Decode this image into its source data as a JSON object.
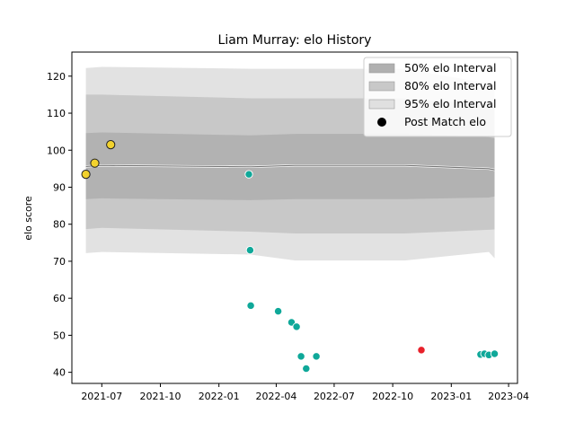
{
  "chart_data": {
    "type": "scatter",
    "title": "Liam Murray: elo History",
    "xlabel": "",
    "ylabel": "elo score",
    "xlim": [
      "2021-05-15",
      "2023-04-15"
    ],
    "ylim": [
      37,
      126.5
    ],
    "x_ticks": [
      "2021-07",
      "2021-10",
      "2022-01",
      "2022-04",
      "2022-07",
      "2022-10",
      "2023-01",
      "2023-04"
    ],
    "y_ticks": [
      40,
      50,
      60,
      70,
      80,
      90,
      100,
      110,
      120
    ],
    "grid": false,
    "legend_position": "top-right",
    "legend": [
      {
        "label": "50% elo Interval",
        "color": "#b0b0b0",
        "kind": "patch"
      },
      {
        "label": "80% elo Interval",
        "color": "#c8c8c8",
        "kind": "patch"
      },
      {
        "label": "95% elo Interval",
        "color": "#e0e0e0",
        "kind": "patch"
      },
      {
        "label": "Post Match elo",
        "color": "#000000",
        "kind": "marker"
      }
    ],
    "rating_band": [
      {
        "date": "2021-06-06",
        "mean": 95.6,
        "i50": [
          86.8,
          104.6
        ],
        "i80": [
          78.7,
          115.0
        ],
        "i95": [
          72.2,
          122.2
        ]
      },
      {
        "date": "2021-07-01",
        "mean": 95.9,
        "i50": [
          87.0,
          104.8
        ],
        "i80": [
          79.0,
          115.0
        ],
        "i95": [
          72.5,
          122.5
        ]
      },
      {
        "date": "2022-02-20",
        "mean": 95.5,
        "i50": [
          86.5,
          104.0
        ],
        "i80": [
          78.0,
          114.0
        ],
        "i95": [
          71.8,
          122.0
        ]
      },
      {
        "date": "2022-05-01",
        "mean": 95.9,
        "i50": [
          86.8,
          104.4
        ],
        "i80": [
          77.5,
          114.0
        ],
        "i95": [
          70.2,
          122.0
        ]
      },
      {
        "date": "2022-10-20",
        "mean": 95.9,
        "i50": [
          86.8,
          104.4
        ],
        "i80": [
          77.5,
          114.0
        ],
        "i95": [
          70.2,
          122.0
        ]
      },
      {
        "date": "2023-03-01",
        "mean": 95.0,
        "i50": [
          87.2,
          103.5
        ],
        "i80": [
          78.5,
          112.3
        ],
        "i95": [
          72.5,
          118.0
        ]
      },
      {
        "date": "2023-03-10",
        "mean": 94.7,
        "i50": [
          87.5,
          103.2
        ],
        "i80": [
          78.6,
          112.0
        ],
        "i95": [
          70.8,
          118.0
        ]
      }
    ],
    "series": [
      {
        "name": "",
        "color": "#f2d22e",
        "points": [
          {
            "x": "2021-06-06",
            "y": 93.5
          },
          {
            "x": "2021-06-20",
            "y": 96.5
          },
          {
            "x": "2021-07-15",
            "y": 101.5
          }
        ]
      },
      {
        "name": "",
        "color": "#0fa899",
        "points": [
          {
            "x": "2022-02-17",
            "y": 93.5
          },
          {
            "x": "2022-02-19",
            "y": 73.0
          },
          {
            "x": "2022-02-20",
            "y": 58.0
          },
          {
            "x": "2022-04-04",
            "y": 56.5
          },
          {
            "x": "2022-04-25",
            "y": 53.5
          },
          {
            "x": "2022-05-03",
            "y": 52.3
          },
          {
            "x": "2022-05-10",
            "y": 44.3
          },
          {
            "x": "2022-05-18",
            "y": 41.0
          },
          {
            "x": "2022-06-03",
            "y": 44.3
          },
          {
            "x": "2023-02-16",
            "y": 44.8
          },
          {
            "x": "2023-02-22",
            "y": 45.0
          },
          {
            "x": "2023-03-01",
            "y": 44.7
          },
          {
            "x": "2023-03-10",
            "y": 45.0
          }
        ]
      },
      {
        "name": "",
        "color": "#e8202a",
        "points": [
          {
            "x": "2022-11-15",
            "y": 46.0
          }
        ]
      }
    ]
  }
}
